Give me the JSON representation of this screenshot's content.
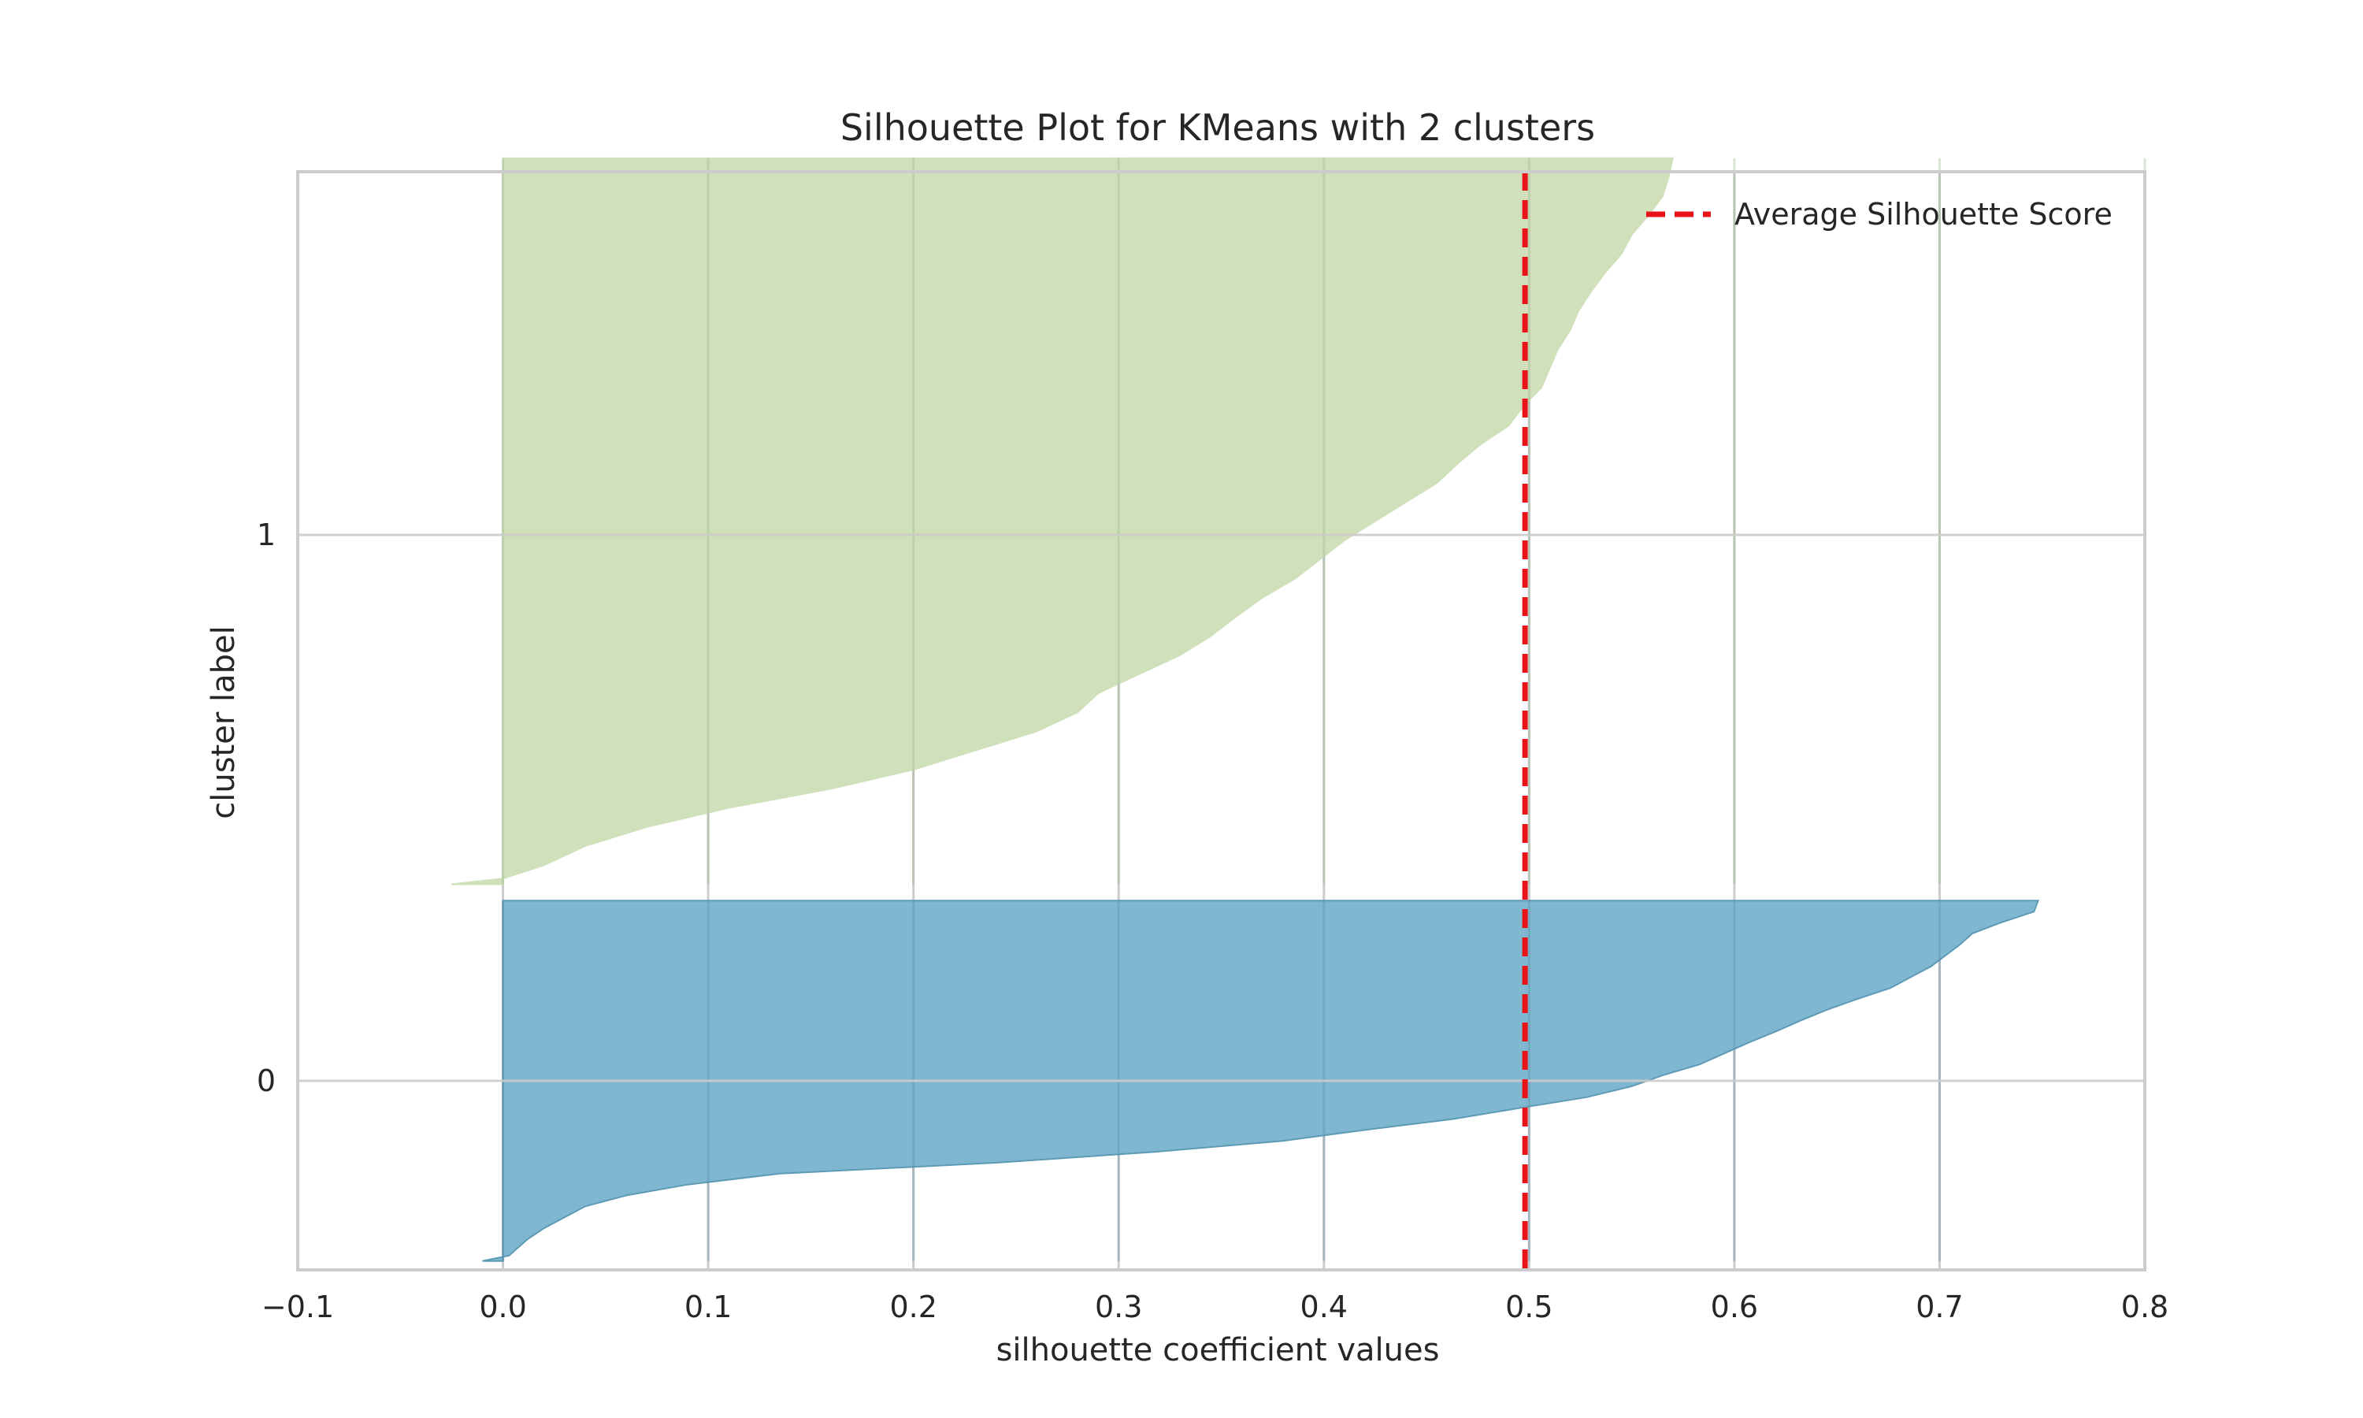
{
  "chart_data": {
    "type": "area",
    "title": "Silhouette Plot for KMeans with 2 clusters",
    "xlabel": "silhouette coefficient values",
    "ylabel": "cluster label",
    "xlim": [
      -0.1,
      0.8
    ],
    "x_ticks": [
      "−0.1",
      "0.0",
      "0.1",
      "0.2",
      "0.3",
      "0.4",
      "0.5",
      "0.6",
      "0.7",
      "0.8"
    ],
    "x_tick_values": [
      -0.1,
      0.0,
      0.1,
      0.2,
      0.3,
      0.4,
      0.5,
      0.6,
      0.7,
      0.8
    ],
    "y_ticks": [
      "0",
      "1"
    ],
    "grid": true,
    "average_silhouette_score": 0.498,
    "legend": {
      "position": "top-right",
      "entries": [
        "Average Silhouette Score"
      ]
    },
    "colors": {
      "cluster_0": "#80b7d0",
      "cluster_0_edge": "#5d9ab6",
      "cluster_1": "#cfe0bb",
      "average_line": "#e8141a",
      "grid": "#cccccc",
      "spine": "#cccccc"
    },
    "series": [
      {
        "cluster": "0",
        "sorted_profile_ascending": [
          [
            0.0,
            -0.01
          ],
          [
            0.05,
            0.003
          ],
          [
            0.1,
            0.006
          ],
          [
            0.2,
            0.012
          ],
          [
            0.3,
            0.02
          ],
          [
            0.4,
            0.03
          ],
          [
            0.5,
            0.04
          ],
          [
            0.6,
            0.06
          ],
          [
            0.7,
            0.09
          ],
          [
            0.8,
            0.135
          ],
          [
            0.9,
            0.24
          ],
          [
            1.0,
            0.318
          ],
          [
            1.1,
            0.38
          ],
          [
            1.2,
            0.42
          ],
          [
            1.3,
            0.463
          ],
          [
            1.4,
            0.495
          ],
          [
            1.5,
            0.528
          ],
          [
            1.6,
            0.55
          ],
          [
            1.7,
            0.565
          ],
          [
            1.8,
            0.583
          ],
          [
            1.9,
            0.595
          ],
          [
            2.0,
            0.607
          ],
          [
            2.1,
            0.62
          ],
          [
            2.2,
            0.632
          ],
          [
            2.3,
            0.645
          ],
          [
            2.4,
            0.66
          ],
          [
            2.5,
            0.676
          ],
          [
            2.6,
            0.686
          ],
          [
            2.7,
            0.696
          ],
          [
            2.8,
            0.703
          ],
          [
            2.9,
            0.71
          ],
          [
            3.0,
            0.716
          ],
          [
            3.1,
            0.73
          ],
          [
            3.2,
            0.746
          ],
          [
            3.3,
            0.748
          ]
        ]
      },
      {
        "cluster": "1",
        "sorted_profile_ascending": [
          [
            0.0,
            -0.025
          ],
          [
            0.03,
            0.0
          ],
          [
            0.1,
            0.02
          ],
          [
            0.2,
            0.04
          ],
          [
            0.3,
            0.07
          ],
          [
            0.4,
            0.11
          ],
          [
            0.5,
            0.16
          ],
          [
            0.6,
            0.2
          ],
          [
            0.7,
            0.23
          ],
          [
            0.8,
            0.26
          ],
          [
            0.9,
            0.28
          ],
          [
            1.0,
            0.29
          ],
          [
            1.1,
            0.31
          ],
          [
            1.2,
            0.33
          ],
          [
            1.3,
            0.345
          ],
          [
            1.4,
            0.357
          ],
          [
            1.5,
            0.37
          ],
          [
            1.6,
            0.386
          ],
          [
            1.7,
            0.398
          ],
          [
            1.8,
            0.41
          ],
          [
            1.9,
            0.425
          ],
          [
            2.0,
            0.44
          ],
          [
            2.1,
            0.455
          ],
          [
            2.2,
            0.465
          ],
          [
            2.3,
            0.476
          ],
          [
            2.4,
            0.49
          ],
          [
            2.5,
            0.497
          ],
          [
            2.6,
            0.506
          ],
          [
            2.7,
            0.51
          ],
          [
            2.8,
            0.514
          ],
          [
            2.9,
            0.52
          ],
          [
            3.0,
            0.524
          ],
          [
            3.1,
            0.53
          ],
          [
            3.2,
            0.537
          ],
          [
            3.3,
            0.545
          ],
          [
            3.4,
            0.55
          ],
          [
            3.5,
            0.558
          ],
          [
            3.6,
            0.565
          ],
          [
            3.7,
            0.568
          ],
          [
            3.8,
            0.57
          ]
        ]
      }
    ]
  }
}
